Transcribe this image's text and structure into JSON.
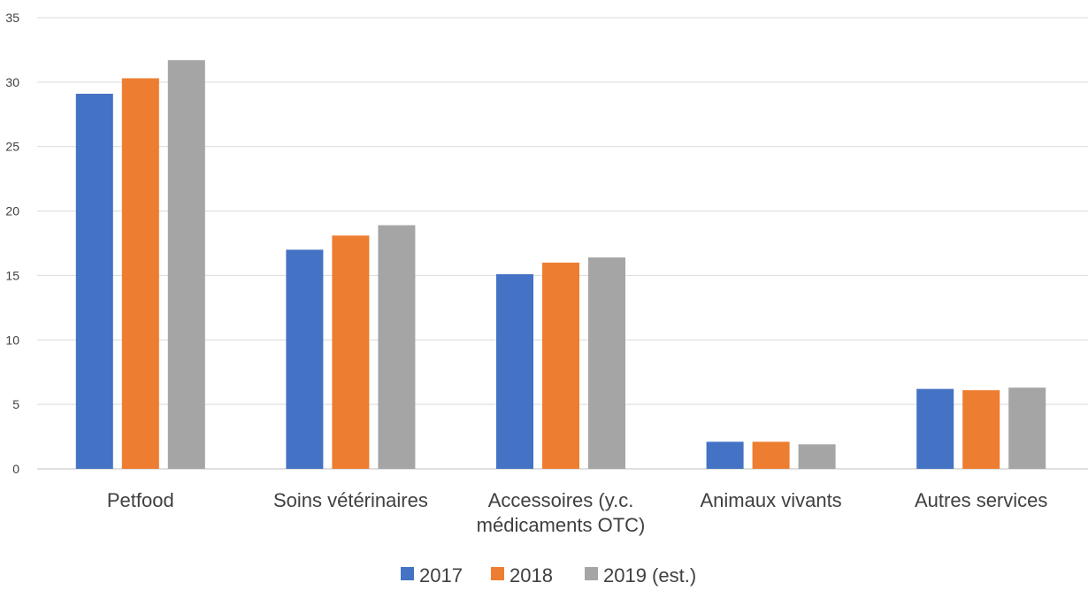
{
  "chart_data": {
    "type": "bar",
    "categories": [
      [
        "Petfood"
      ],
      [
        "Soins vétérinaires"
      ],
      [
        "Accessoires (y.c.",
        "médicaments OTC)"
      ],
      [
        "Animaux vivants"
      ],
      [
        "Autres services"
      ]
    ],
    "series": [
      {
        "name": "2017",
        "color": "#4472C4",
        "values": [
          29.1,
          17.0,
          15.1,
          2.1,
          6.2
        ]
      },
      {
        "name": "2018",
        "color": "#ED7D31",
        "values": [
          30.3,
          18.1,
          16.0,
          2.1,
          6.1
        ]
      },
      {
        "name": "2019 (est.)",
        "color": "#A5A5A5",
        "values": [
          31.7,
          18.9,
          16.4,
          1.9,
          6.3
        ]
      }
    ],
    "ylim": [
      0,
      35
    ],
    "yticks": [
      0,
      5,
      10,
      15,
      20,
      25,
      30,
      35
    ],
    "grid": true,
    "legend": "bottom-center"
  }
}
